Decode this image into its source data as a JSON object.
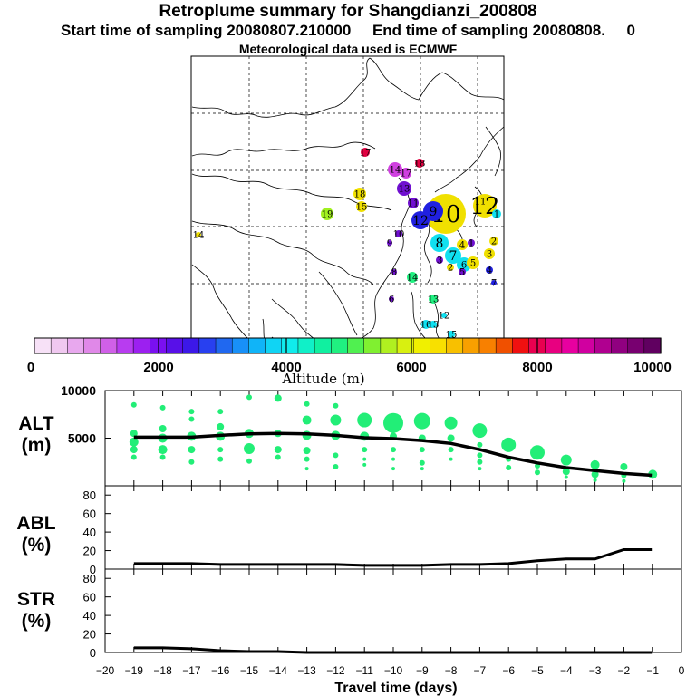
{
  "header": {
    "title": "Retroplume summary for Shangdianzi_200808",
    "start_label": "Start time of sampling 20080807.210000",
    "end_label": "End time of sampling 20080808.     0",
    "met_label": "Meteorological data used is ECMWF"
  },
  "colorbar": {
    "label": "Altitude (m)",
    "ticks": [
      "0",
      "2000",
      "4000",
      "6000",
      "8000",
      "10000"
    ],
    "colors": [
      "#f7e1f7",
      "#f0c8f0",
      "#e8a8ee",
      "#e088e8",
      "#d060e8",
      "#b83cf0",
      "#9c20f0",
      "#7a10f0",
      "#5810e8",
      "#3c18e8",
      "#2840f0",
      "#2068f0",
      "#1890f8",
      "#10b4f8",
      "#10d4f4",
      "#10ecec",
      "#10f0c8",
      "#10f0a0",
      "#20f080",
      "#50f050",
      "#80f030",
      "#b0f020",
      "#d8f010",
      "#f0f000",
      "#f8e000",
      "#f8c000",
      "#f8a000",
      "#f88000",
      "#f05000",
      "#f01010",
      "#e80050",
      "#e80080",
      "#e800a0",
      "#d000a0",
      "#b00090",
      "#900080",
      "#780070",
      "#600060"
    ]
  },
  "map": {
    "point_labels": [
      "17",
      "18",
      "17",
      "18",
      "15",
      "19",
      "14",
      "14",
      "13",
      "12",
      "11",
      "10",
      "9",
      "8",
      "7",
      "6",
      "5",
      "4",
      "3",
      "2",
      "1",
      "16",
      "15",
      "14",
      "13",
      "12",
      "11",
      "10",
      "9",
      "8",
      "7",
      "6",
      "5",
      "4",
      "3",
      "2",
      "1",
      "13",
      "12"
    ],
    "point_colors": {
      "magenta": "#d040e0",
      "yellow": "#f0e000",
      "cyan": "#10e0f0",
      "blue": "#2020e0",
      "green": "#20f080",
      "lime": "#a0f020",
      "red": "#e00040",
      "purple": "#7010d0"
    }
  },
  "chart_data": [
    {
      "type": "scatter",
      "name": "ALT",
      "ylabel": "ALT\n(m)",
      "xlabel": "Travel time (days)",
      "xlim": [
        -20,
        0
      ],
      "ylim": [
        0,
        10000
      ],
      "yticks": [
        0,
        5000,
        10000
      ],
      "y_tick_labels": [
        "5000",
        "10000"
      ],
      "point_color": "#22ee77",
      "line_color": "#000000",
      "mean_line": {
        "x": [
          -19,
          -18,
          -17,
          -16,
          -15,
          -14,
          -13,
          -12,
          -11,
          -10,
          -9,
          -8,
          -7,
          -6,
          -5,
          -4,
          -3,
          -2,
          -1
        ],
        "y": [
          5100,
          5100,
          5100,
          5300,
          5450,
          5500,
          5450,
          5300,
          5050,
          4950,
          4750,
          4450,
          3800,
          3000,
          2400,
          1900,
          1600,
          1300,
          1100
        ]
      },
      "points": [
        {
          "x": -19,
          "y": 8500,
          "r": 3
        },
        {
          "x": -19,
          "y": 5500,
          "r": 4
        },
        {
          "x": -19,
          "y": 4600,
          "r": 5
        },
        {
          "x": -19,
          "y": 3800,
          "r": 4
        },
        {
          "x": -19,
          "y": 3000,
          "r": 3
        },
        {
          "x": -18,
          "y": 8200,
          "r": 3
        },
        {
          "x": -18,
          "y": 6000,
          "r": 4
        },
        {
          "x": -18,
          "y": 5000,
          "r": 5
        },
        {
          "x": -18,
          "y": 3800,
          "r": 5
        },
        {
          "x": -18,
          "y": 3000,
          "r": 3
        },
        {
          "x": -17,
          "y": 7800,
          "r": 3
        },
        {
          "x": -17,
          "y": 7000,
          "r": 3
        },
        {
          "x": -17,
          "y": 5200,
          "r": 5
        },
        {
          "x": -17,
          "y": 3800,
          "r": 4
        },
        {
          "x": -17,
          "y": 2500,
          "r": 3
        },
        {
          "x": -16,
          "y": 7800,
          "r": 3
        },
        {
          "x": -16,
          "y": 6200,
          "r": 4
        },
        {
          "x": -16,
          "y": 5200,
          "r": 5
        },
        {
          "x": -16,
          "y": 3800,
          "r": 3
        },
        {
          "x": -16,
          "y": 2800,
          "r": 3
        },
        {
          "x": -15,
          "y": 9300,
          "r": 3
        },
        {
          "x": -15,
          "y": 5500,
          "r": 5
        },
        {
          "x": -15,
          "y": 3900,
          "r": 6
        },
        {
          "x": -15,
          "y": 2600,
          "r": 3
        },
        {
          "x": -14,
          "y": 9200,
          "r": 4
        },
        {
          "x": -14,
          "y": 5500,
          "r": 4
        },
        {
          "x": -14,
          "y": 3800,
          "r": 4
        },
        {
          "x": -14,
          "y": 3000,
          "r": 3
        },
        {
          "x": -13,
          "y": 8600,
          "r": 3
        },
        {
          "x": -13,
          "y": 6900,
          "r": 5
        },
        {
          "x": -13,
          "y": 5300,
          "r": 5
        },
        {
          "x": -13,
          "y": 3700,
          "r": 4
        },
        {
          "x": -13,
          "y": 2800,
          "r": 3
        },
        {
          "x": -13,
          "y": 1800,
          "r": 2
        },
        {
          "x": -12,
          "y": 8400,
          "r": 3
        },
        {
          "x": -12,
          "y": 6900,
          "r": 6
        },
        {
          "x": -12,
          "y": 5300,
          "r": 5
        },
        {
          "x": -12,
          "y": 3200,
          "r": 3
        },
        {
          "x": -12,
          "y": 2000,
          "r": 3
        },
        {
          "x": -11,
          "y": 6900,
          "r": 8
        },
        {
          "x": -11,
          "y": 5200,
          "r": 5
        },
        {
          "x": -11,
          "y": 3800,
          "r": 3
        },
        {
          "x": -11,
          "y": 2800,
          "r": 2
        },
        {
          "x": -11,
          "y": 2200,
          "r": 2
        },
        {
          "x": -10,
          "y": 6600,
          "r": 11
        },
        {
          "x": -10,
          "y": 5200,
          "r": 4
        },
        {
          "x": -10,
          "y": 3800,
          "r": 3
        },
        {
          "x": -10,
          "y": 2800,
          "r": 2
        },
        {
          "x": -10,
          "y": 1800,
          "r": 2
        },
        {
          "x": -9,
          "y": 6800,
          "r": 9
        },
        {
          "x": -9,
          "y": 5000,
          "r": 4
        },
        {
          "x": -9,
          "y": 3800,
          "r": 3
        },
        {
          "x": -9,
          "y": 2400,
          "r": 3
        },
        {
          "x": -9,
          "y": 1800,
          "r": 2
        },
        {
          "x": -8,
          "y": 6600,
          "r": 7
        },
        {
          "x": -8,
          "y": 5000,
          "r": 4
        },
        {
          "x": -8,
          "y": 3800,
          "r": 3
        },
        {
          "x": -8,
          "y": 2800,
          "r": 2
        },
        {
          "x": -7,
          "y": 5800,
          "r": 8
        },
        {
          "x": -7,
          "y": 4300,
          "r": 3
        },
        {
          "x": -7,
          "y": 3200,
          "r": 3
        },
        {
          "x": -7,
          "y": 2500,
          "r": 3
        },
        {
          "x": -7,
          "y": 1800,
          "r": 2
        },
        {
          "x": -6,
          "y": 4300,
          "r": 8
        },
        {
          "x": -6,
          "y": 2800,
          "r": 3
        },
        {
          "x": -6,
          "y": 1900,
          "r": 3
        },
        {
          "x": -5,
          "y": 3500,
          "r": 8
        },
        {
          "x": -5,
          "y": 2100,
          "r": 3
        },
        {
          "x": -5,
          "y": 1400,
          "r": 3
        },
        {
          "x": -4,
          "y": 2700,
          "r": 6
        },
        {
          "x": -4,
          "y": 1500,
          "r": 4
        },
        {
          "x": -4,
          "y": 900,
          "r": 2
        },
        {
          "x": -3,
          "y": 2200,
          "r": 5
        },
        {
          "x": -3,
          "y": 1200,
          "r": 4
        },
        {
          "x": -3,
          "y": 600,
          "r": 2
        },
        {
          "x": -2,
          "y": 2000,
          "r": 4
        },
        {
          "x": -2,
          "y": 1100,
          "r": 3
        },
        {
          "x": -2,
          "y": 500,
          "r": 2
        },
        {
          "x": -1,
          "y": 1200,
          "r": 5
        }
      ]
    },
    {
      "type": "line",
      "name": "ABL",
      "ylabel": "ABL\n(%)",
      "xlim": [
        -20,
        0
      ],
      "ylim": [
        0,
        90
      ],
      "yticks": [
        0,
        20,
        40,
        60,
        80
      ],
      "x": [
        -19,
        -18,
        -17,
        -16,
        -15,
        -14,
        -13,
        -12,
        -11,
        -10,
        -9,
        -8,
        -7,
        -6,
        -5,
        -4,
        -3,
        -2,
        -1
      ],
      "values": [
        6,
        6,
        6,
        5,
        5,
        5,
        5,
        5,
        4,
        4,
        4,
        5,
        5,
        6,
        9,
        11,
        11,
        21,
        21
      ]
    },
    {
      "type": "line",
      "name": "STR",
      "ylabel": "STR\n(%)",
      "xlabel": "Travel time (days)",
      "xlim": [
        -20,
        0
      ],
      "ylim": [
        0,
        90
      ],
      "yticks": [
        0,
        20,
        40,
        60,
        80
      ],
      "x_tick_labels": [
        "−20",
        "−19",
        "−18",
        "−17",
        "−16",
        "−15",
        "−14",
        "−13",
        "−12",
        "−11",
        "−10",
        "−9",
        "−8",
        "−7",
        "−6",
        "−5",
        "−4",
        "−3",
        "−2",
        "−1",
        "0"
      ],
      "x": [
        -19,
        -18,
        -17,
        -16,
        -15,
        -14,
        -13,
        -12,
        -11,
        -10,
        -9,
        -8,
        -7,
        -6,
        -5,
        -4,
        -3,
        -2,
        -1
      ],
      "values": [
        5,
        5,
        4,
        2,
        1,
        1,
        0,
        0,
        0,
        0,
        0,
        0,
        0,
        0,
        0,
        0,
        0,
        0,
        0
      ]
    }
  ]
}
